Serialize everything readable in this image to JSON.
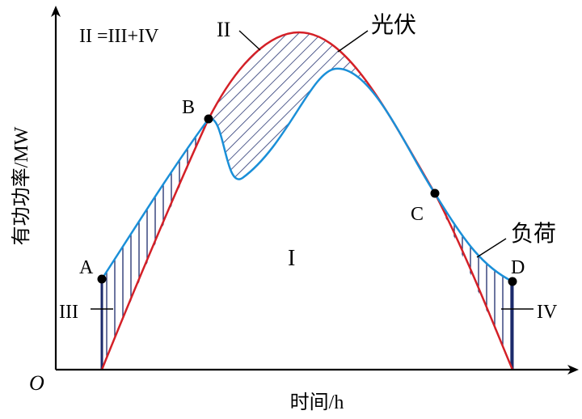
{
  "diagram": {
    "equation": "II =III+IV",
    "axes": {
      "origin": "O",
      "x_label": "时间/h",
      "y_label": "有功功率/MW"
    },
    "curves": {
      "pv_label": "光伏",
      "load_label": "负荷"
    },
    "points": {
      "A": "A",
      "B": "B",
      "C": "C",
      "D": "D"
    },
    "regions": {
      "I": "I",
      "II": "II",
      "III": "III",
      "IV": "IV"
    },
    "colors": {
      "pv": "#d42027",
      "load": "#1a8fd8",
      "hatch": "#1b2a6b",
      "axis": "#000000"
    }
  }
}
